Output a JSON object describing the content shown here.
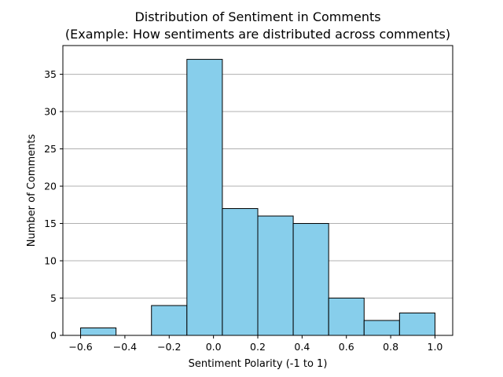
{
  "chart_data": {
    "type": "bar",
    "title": "Distribution of Sentiment in Comments",
    "subtitle": "(Example: How sentiments are distributed across comments)",
    "xlabel": "Sentiment Polarity (-1 to 1)",
    "ylabel": "Number of Comments",
    "bins": [
      {
        "x0": -0.6,
        "x1": -0.44,
        "count": 1
      },
      {
        "x0": -0.44,
        "x1": -0.28,
        "count": 0
      },
      {
        "x0": -0.28,
        "x1": -0.12,
        "count": 4
      },
      {
        "x0": -0.12,
        "x1": 0.04,
        "count": 37
      },
      {
        "x0": 0.04,
        "x1": 0.2,
        "count": 17
      },
      {
        "x0": 0.2,
        "x1": 0.36,
        "count": 16
      },
      {
        "x0": 0.36,
        "x1": 0.52,
        "count": 15
      },
      {
        "x0": 0.52,
        "x1": 0.68,
        "count": 5
      },
      {
        "x0": 0.68,
        "x1": 0.84,
        "count": 2
      },
      {
        "x0": 0.84,
        "x1": 1.0,
        "count": 3
      }
    ],
    "xlim": [
      -0.68,
      1.08
    ],
    "ylim": [
      0,
      38.85
    ],
    "xticks": [
      -0.6,
      -0.4,
      -0.2,
      0.0,
      0.2,
      0.4,
      0.6,
      0.8,
      1.0
    ],
    "xtick_labels": [
      "−0.6",
      "−0.4",
      "−0.2",
      "0.0",
      "0.2",
      "0.4",
      "0.6",
      "0.8",
      "1.0"
    ],
    "yticks": [
      0,
      5,
      10,
      15,
      20,
      25,
      30,
      35
    ],
    "ytick_labels": [
      "0",
      "5",
      "10",
      "15",
      "20",
      "25",
      "30",
      "35"
    ],
    "grid": "y",
    "colors": {
      "bar_fill": "#87CEEB",
      "bar_edge": "#000000",
      "grid": "#b0b0b0"
    }
  }
}
